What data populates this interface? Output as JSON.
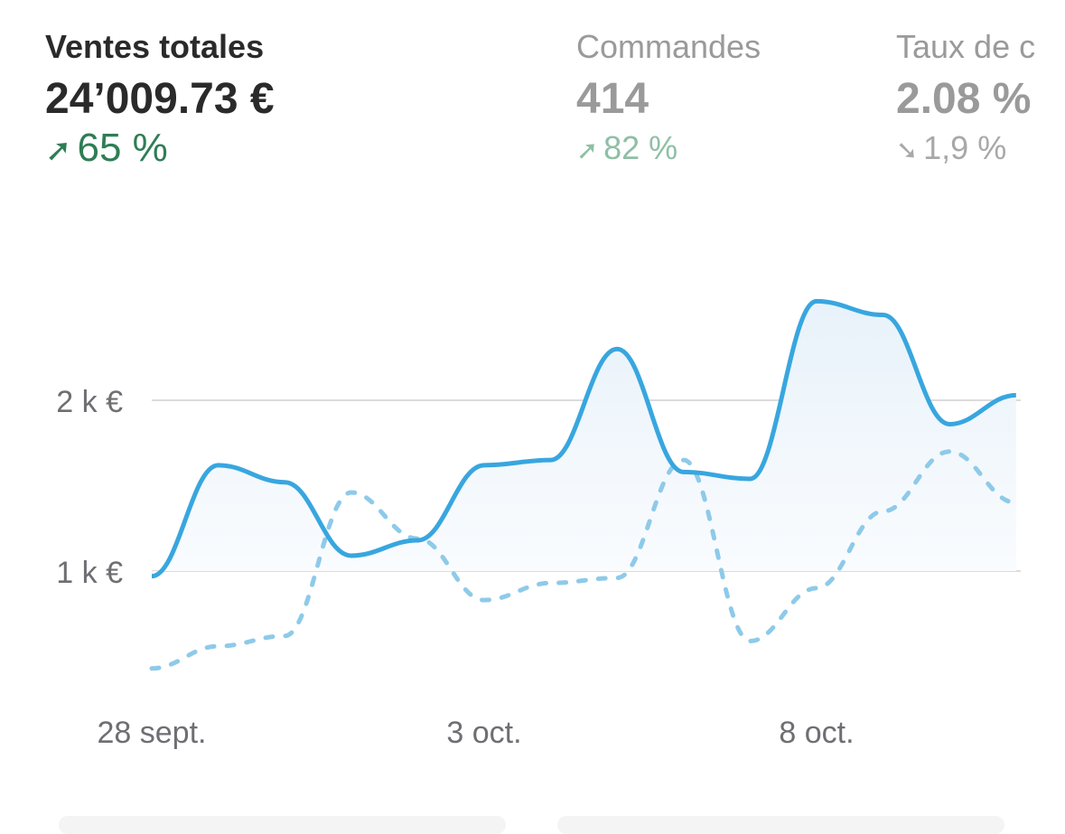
{
  "kpis": [
    {
      "label": "Ventes totales",
      "value": "24’009.73 €",
      "delta": "65 %",
      "direction": "up",
      "delta_icon": "arrow-up-right-icon"
    },
    {
      "label": "Commandes",
      "value": "414",
      "delta": "82 %",
      "direction": "up",
      "delta_icon": "arrow-up-right-icon"
    },
    {
      "label": "Taux de c",
      "value": "2.08 %",
      "delta": "1,9 %",
      "direction": "down",
      "delta_icon": "arrow-down-right-icon"
    }
  ],
  "chart_data": {
    "type": "line",
    "title": "Ventes totales",
    "x": [
      "28 sept.",
      "29 sept.",
      "30 sept.",
      "1 oct.",
      "2 oct.",
      "3 oct.",
      "4 oct.",
      "5 oct.",
      "6 oct.",
      "7 oct.",
      "8 oct.",
      "9 oct.",
      "10 oct.",
      "11 oct."
    ],
    "x_tick_labels": [
      "28 sept.",
      "3 oct.",
      "8 oct."
    ],
    "y_tick_labels": [
      "1 k €",
      "2 k €"
    ],
    "y_ticks": [
      1000,
      2000
    ],
    "ylim": [
      0,
      2900
    ],
    "grid": true,
    "series": [
      {
        "name": "current",
        "style": "solid",
        "color": "#38a6df",
        "values": [
          970,
          1620,
          1520,
          1090,
          1180,
          1620,
          1650,
          2300,
          1580,
          1540,
          2580,
          2500,
          1860,
          2030
        ]
      },
      {
        "name": "previous",
        "style": "dashed",
        "color": "#8ecae9",
        "values": [
          430,
          560,
          620,
          1460,
          1190,
          830,
          930,
          960,
          1650,
          590,
          900,
          1350,
          1700,
          1400
        ]
      }
    ]
  }
}
